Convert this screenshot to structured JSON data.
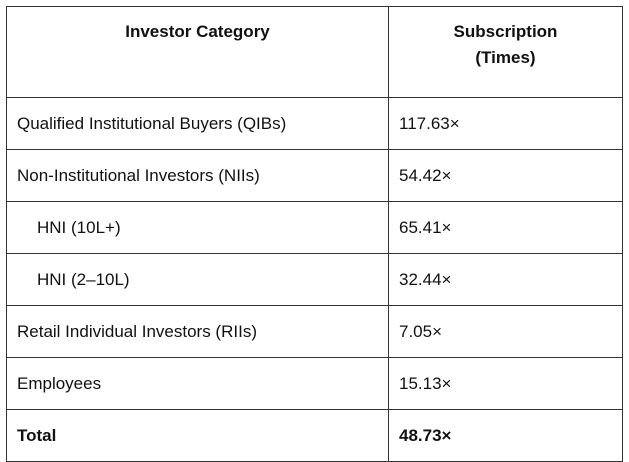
{
  "table": {
    "header": [
      "Investor Category",
      "Subscription (Times)"
    ],
    "rows": [
      [
        "Qualified Institutional Buyers (QIBs)",
        "117.63×"
      ],
      [
        "Non-Institutional Investors (NIIs)",
        "54.42×"
      ],
      [
        "HNI (10L+)",
        "65.41×"
      ],
      [
        "HNI (2–10L)",
        "32.44×"
      ],
      [
        "Retail Individual Investors (RIIs)",
        "7.05×"
      ],
      [
        "Employees",
        "15.13×"
      ],
      [
        "Total",
        "48.73×"
      ]
    ]
  }
}
